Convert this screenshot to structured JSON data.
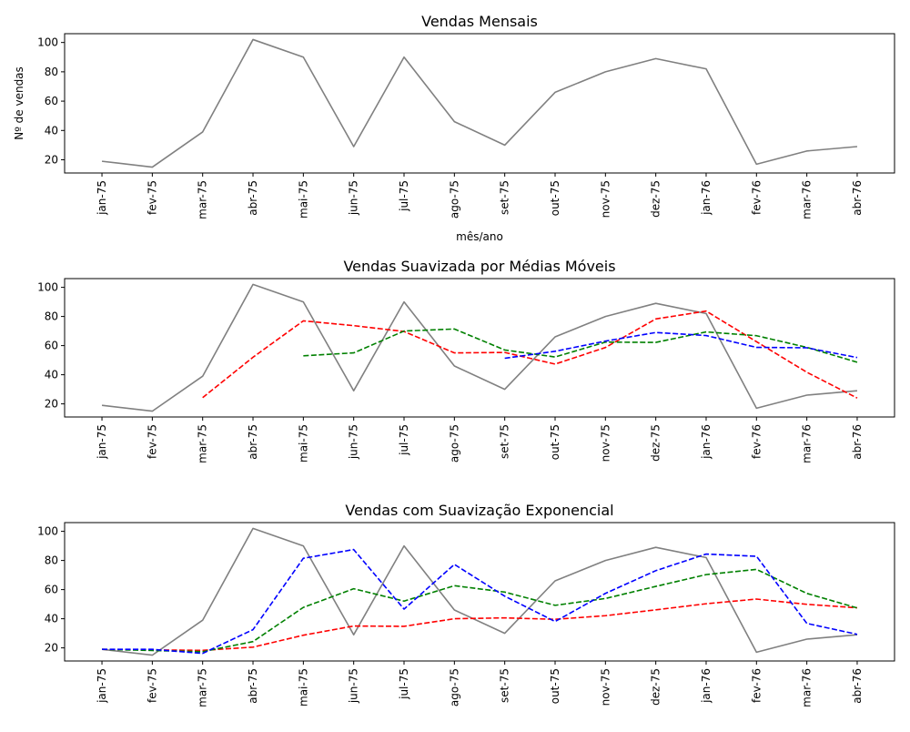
{
  "chart_data": [
    {
      "type": "line",
      "title": "Vendas Mensais",
      "xlabel": "mês/ano",
      "ylabel": "Nº de vendas",
      "categories": [
        "jan-75",
        "fev-75",
        "mar-75",
        "abr-75",
        "mai-75",
        "jun-75",
        "jul-75",
        "ago-75",
        "set-75",
        "out-75",
        "nov-75",
        "dez-75",
        "jan-76",
        "fev-76",
        "mar-76",
        "abr-76"
      ],
      "ylim": [
        11,
        106
      ],
      "yticks": [
        20,
        40,
        60,
        80,
        100
      ],
      "grid": false,
      "series": [
        {
          "color": "#808080",
          "style": "solid",
          "values": [
            19,
            15,
            39,
            102,
            90,
            29,
            90,
            46,
            30,
            66,
            80,
            89,
            82,
            17,
            26,
            29
          ]
        }
      ]
    },
    {
      "type": "line",
      "title": "Vendas Suavizada por Médias Móveis",
      "xlabel": "",
      "ylabel": "",
      "categories": [
        "jan-75",
        "fev-75",
        "mar-75",
        "abr-75",
        "mai-75",
        "jun-75",
        "jul-75",
        "ago-75",
        "set-75",
        "out-75",
        "nov-75",
        "dez-75",
        "jan-76",
        "fev-76",
        "mar-76",
        "abr-76"
      ],
      "ylim": [
        11,
        106
      ],
      "yticks": [
        20,
        40,
        60,
        80,
        100
      ],
      "grid": false,
      "series": [
        {
          "color": "#808080",
          "style": "solid",
          "values": [
            19,
            15,
            39,
            102,
            90,
            29,
            90,
            46,
            30,
            66,
            80,
            89,
            82,
            17,
            26,
            29
          ]
        },
        {
          "color": "#ff0000",
          "style": "dashed",
          "values": [
            null,
            null,
            24.3,
            52,
            77,
            73.7,
            69.7,
            55,
            55.3,
            47.3,
            58.7,
            78.3,
            83.7,
            62.7,
            41.7,
            24
          ]
        },
        {
          "color": "#008000",
          "style": "dashed",
          "values": [
            null,
            null,
            null,
            null,
            53,
            55,
            70,
            71.4,
            57,
            52.2,
            62.4,
            62.2,
            69.4,
            66.8,
            58.8,
            48.6
          ]
        },
        {
          "color": "#0000ff",
          "style": "dashed",
          "values": [
            null,
            null,
            null,
            null,
            null,
            null,
            null,
            null,
            51.3,
            56.1,
            63.1,
            69,
            66.9,
            58.8,
            58.5,
            51.8
          ]
        }
      ]
    },
    {
      "type": "line",
      "title": "Vendas com Suavização Exponencial",
      "xlabel": "",
      "ylabel": "",
      "categories": [
        "jan-75",
        "fev-75",
        "mar-75",
        "abr-75",
        "mai-75",
        "jun-75",
        "jul-75",
        "ago-75",
        "set-75",
        "out-75",
        "nov-75",
        "dez-75",
        "jan-76",
        "fev-76",
        "mar-76",
        "abr-76"
      ],
      "ylim": [
        11,
        106
      ],
      "yticks": [
        20,
        40,
        60,
        80,
        100
      ],
      "grid": false,
      "series": [
        {
          "color": "#808080",
          "style": "solid",
          "values": [
            19,
            15,
            39,
            102,
            90,
            29,
            90,
            46,
            30,
            66,
            80,
            89,
            82,
            17,
            26,
            29
          ]
        },
        {
          "color": "#ff0000",
          "style": "dashed",
          "values": [
            19,
            18.6,
            18.3,
            20.5,
            28.7,
            35,
            34.8,
            40,
            40.6,
            39.6,
            42.1,
            46.1,
            50.3,
            53.5,
            49.9,
            47.5
          ]
        },
        {
          "color": "#008000",
          "style": "dashed",
          "values": [
            19,
            18.2,
            17.4,
            24.3,
            47.8,
            60.6,
            52.1,
            62.7,
            58.3,
            49.2,
            53.9,
            62.2,
            70.3,
            73.9,
            57.4,
            47.4
          ]
        },
        {
          "color": "#0000ff",
          "style": "dashed",
          "values": [
            19,
            19,
            16.2,
            32.5,
            81.5,
            87.5,
            46.6,
            77.3,
            55.5,
            38.1,
            57.4,
            73,
            84.4,
            82.9,
            36.8,
            29.3
          ]
        }
      ]
    }
  ]
}
